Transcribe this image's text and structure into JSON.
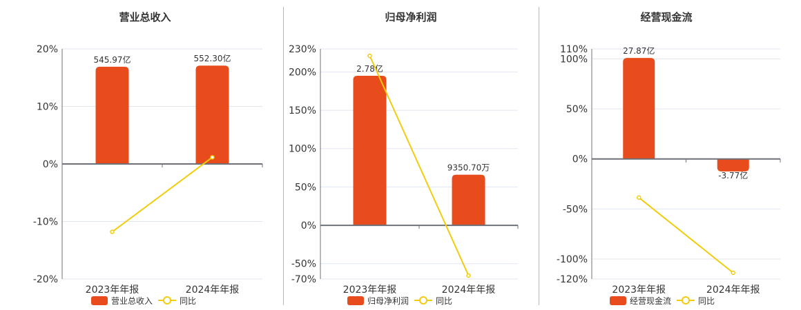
{
  "colors": {
    "bar": "#E84C1C",
    "line": "#F2CC0C",
    "grid": "#E0E6F1",
    "axis": "#6E7079"
  },
  "legend_line_label": "同比",
  "chart_data": [
    {
      "type": "bar+line",
      "title": "营业总收入",
      "categories": [
        "2023年年报",
        "2024年年报"
      ],
      "yticks": [
        "20%",
        "10%",
        "0%",
        "-10%",
        "-20%"
      ],
      "ylim": [
        -20,
        20
      ],
      "series": [
        {
          "name": "营业总收入",
          "type": "bar",
          "labels": [
            "545.97亿",
            "552.30亿"
          ],
          "values_yi": [
            545.97,
            552.3
          ],
          "plot_pct": [
            16.9,
            17.1
          ]
        },
        {
          "name": "同比",
          "type": "line",
          "values": [
            -11.8,
            1.16
          ]
        }
      ]
    },
    {
      "type": "bar+line",
      "title": "归母净利润",
      "categories": [
        "2023年年报",
        "2024年年报"
      ],
      "yticks": [
        "230%",
        "200%",
        "150%",
        "100%",
        "50%",
        "0%",
        "-50%",
        "-70%"
      ],
      "ylim": [
        -70,
        230
      ],
      "series": [
        {
          "name": "归母净利润",
          "type": "bar",
          "labels": [
            "2.78亿",
            "9350.70万"
          ],
          "values_yi": [
            2.78,
            0.935
          ],
          "plot_pct": [
            195.0,
            66.0
          ]
        },
        {
          "name": "同比",
          "type": "line",
          "values": [
            221.0,
            -65.5
          ]
        }
      ]
    },
    {
      "type": "bar+line",
      "title": "经营现金流",
      "categories": [
        "2023年年报",
        "2024年年报"
      ],
      "yticks": [
        "110%",
        "100%",
        "50%",
        "0%",
        "-50%",
        "-100%",
        "-120%"
      ],
      "ylim": [
        -120,
        110
      ],
      "series": [
        {
          "name": "经营现金流",
          "type": "bar",
          "labels": [
            "27.87亿",
            "-3.77亿"
          ],
          "values_yi": [
            27.87,
            -3.77
          ],
          "plot_pct": [
            101.0,
            -12.5
          ]
        },
        {
          "name": "同比",
          "type": "line",
          "values": [
            -38.6,
            -113.8
          ]
        }
      ]
    }
  ]
}
